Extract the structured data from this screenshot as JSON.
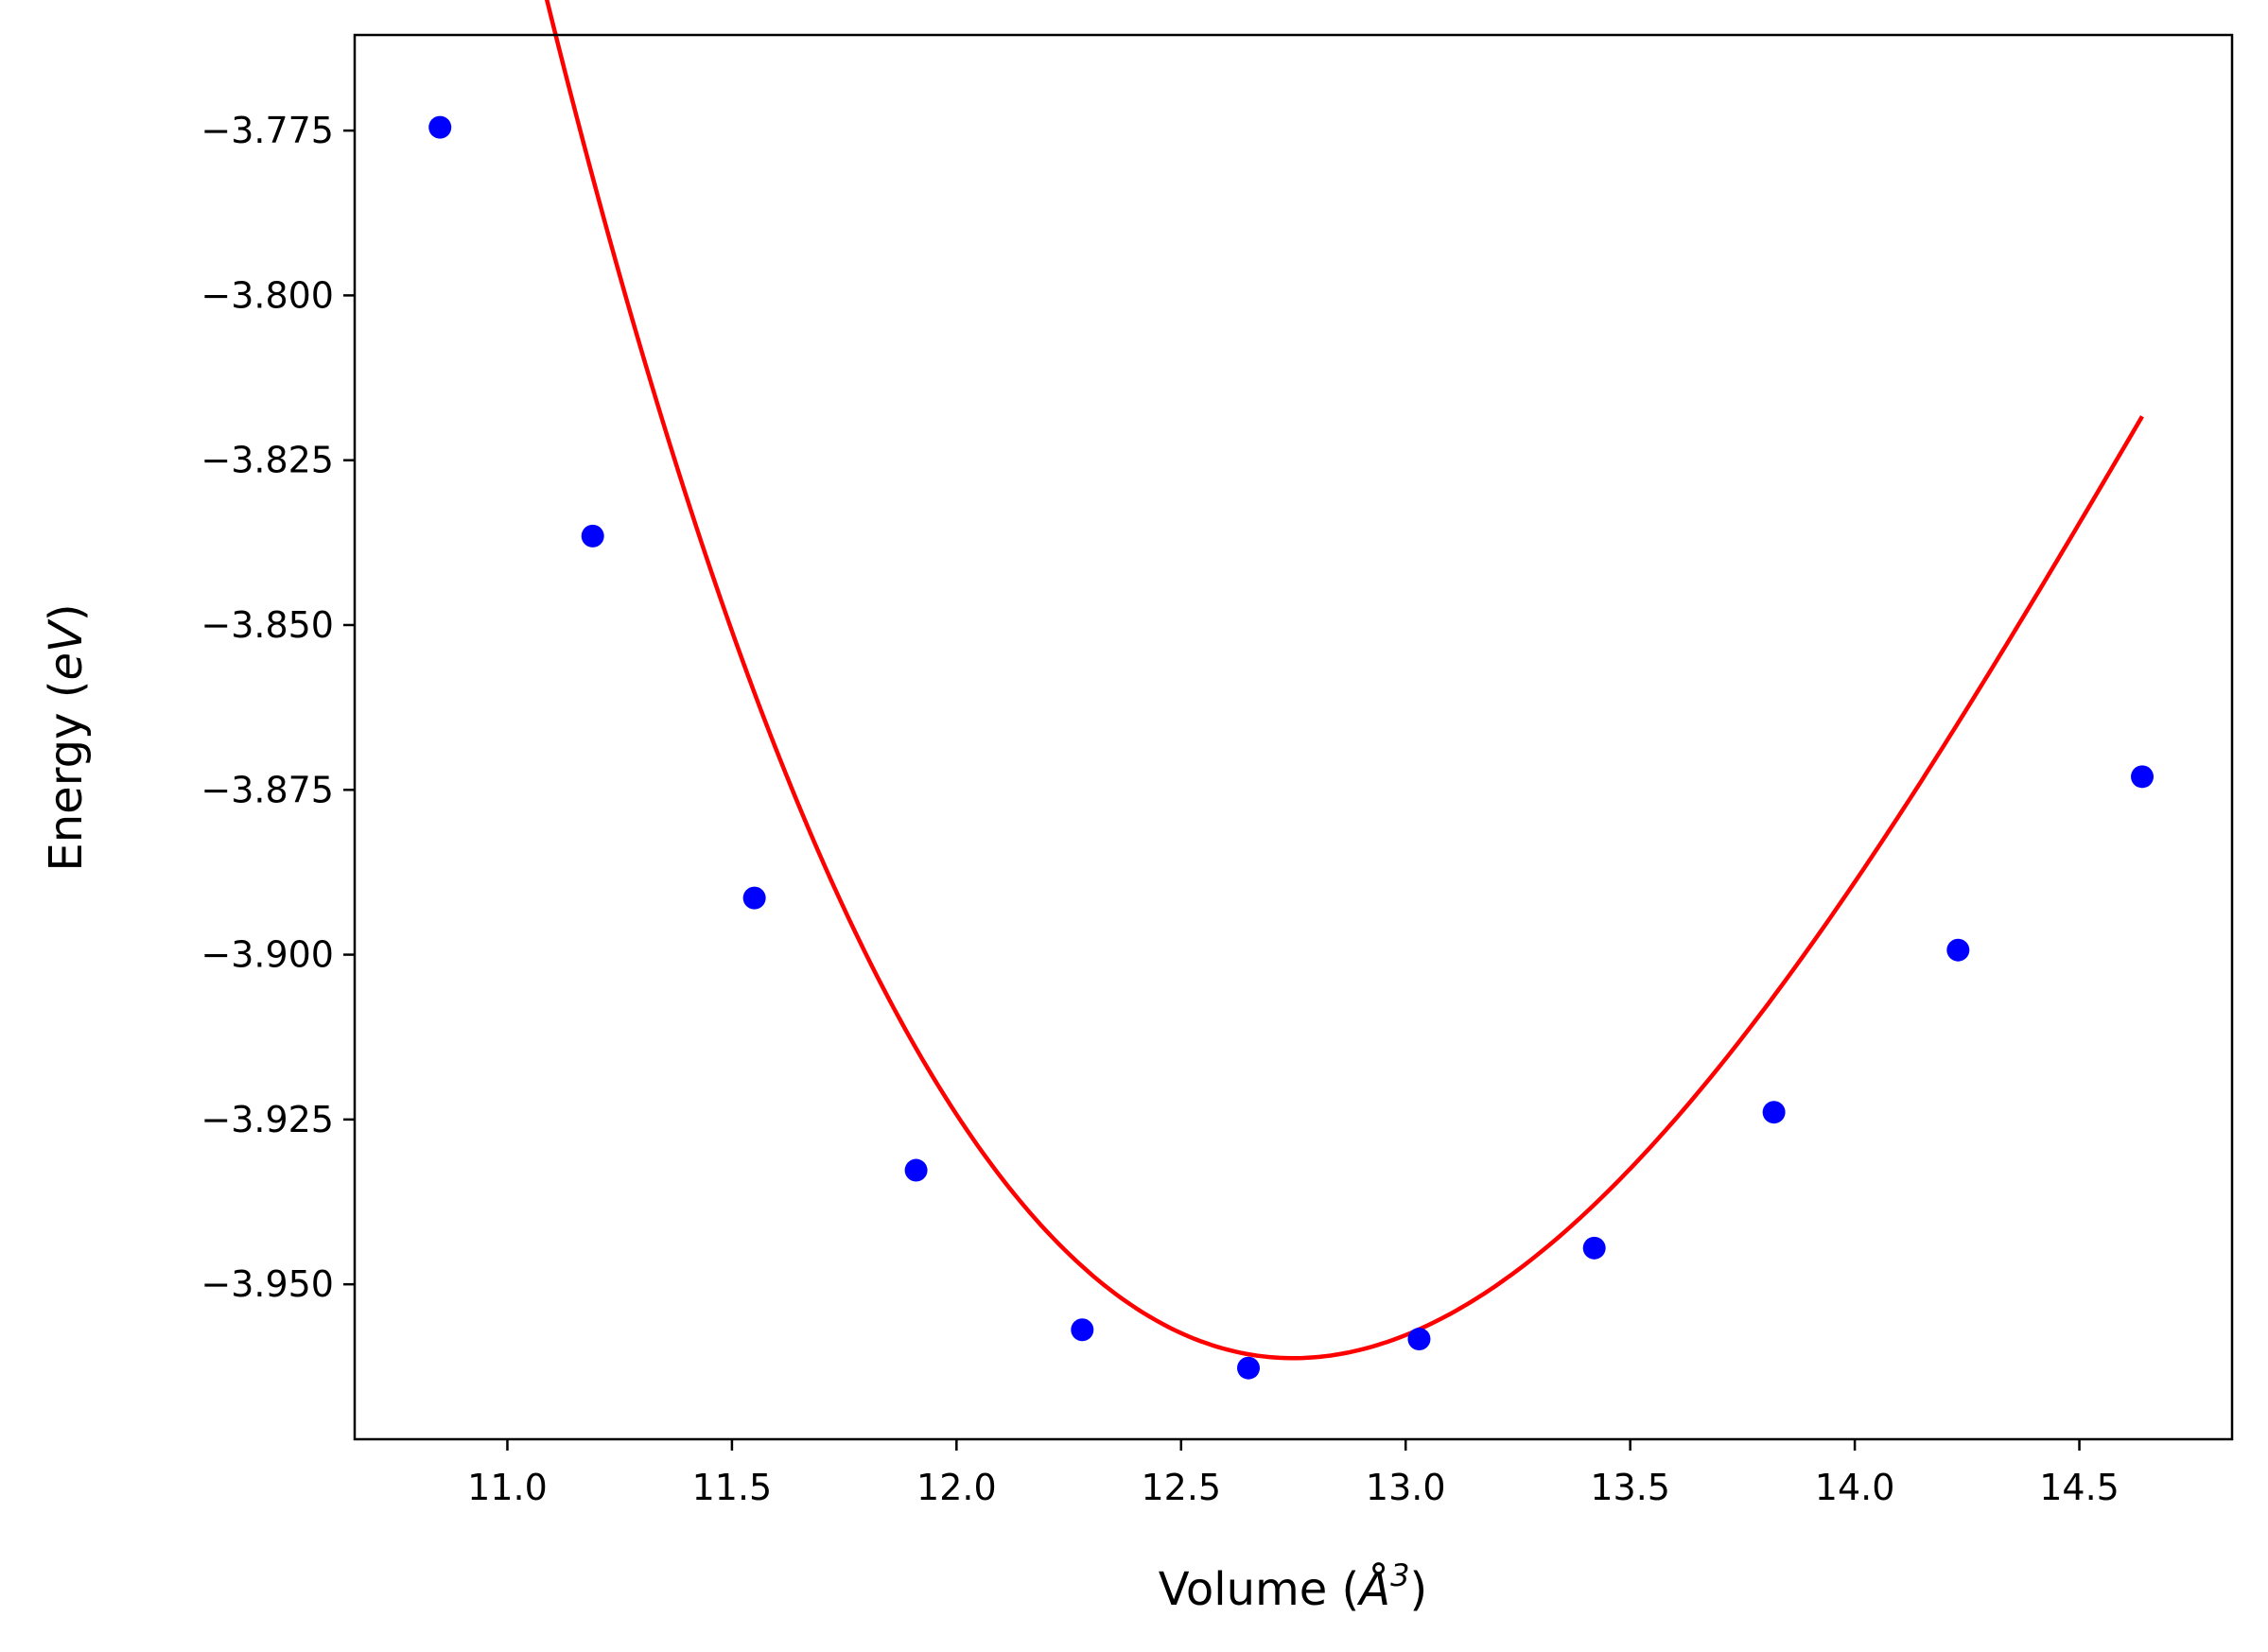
{
  "chart_data": {
    "type": "scatter",
    "title": "",
    "xlabel": {
      "prefix": "Volume (",
      "symbol": "Å",
      "sup": "3",
      "suffix": ")"
    },
    "ylabel": {
      "prefix": "Energy (",
      "italic": "eV",
      "suffix": ")"
    },
    "xlim": [
      10.66,
      14.84
    ],
    "ylim": [
      -3.9735,
      -3.7605
    ],
    "grid": false,
    "legend": "none",
    "x_ticks": [
      11.0,
      11.5,
      12.0,
      12.5,
      13.0,
      13.5,
      14.0,
      14.5
    ],
    "x_tick_labels": [
      "11.0",
      "11.5",
      "12.0",
      "12.5",
      "13.0",
      "13.5",
      "14.0",
      "14.5"
    ],
    "y_ticks": [
      -3.775,
      -3.8,
      -3.825,
      -3.85,
      -3.875,
      -3.9,
      -3.925,
      -3.95
    ],
    "y_tick_labels": [
      "−3.775",
      "−3.800",
      "−3.825",
      "−3.850",
      "−3.875",
      "−3.900",
      "−3.925",
      "−3.950"
    ],
    "series": [
      {
        "kind": "points",
        "color": "#0000ff",
        "x": [
          10.85,
          11.19,
          11.55,
          11.91,
          12.28,
          12.65,
          13.03,
          13.42,
          13.82,
          14.23,
          14.64
        ],
        "y": [
          -3.7745,
          -3.8365,
          -3.8914,
          -3.9327,
          -3.9569,
          -3.9627,
          -3.9583,
          -3.9445,
          -3.9239,
          -3.8993,
          -3.873
        ]
      },
      {
        "kind": "line",
        "color": "#ff0000",
        "fit": {
          "type": "cubic",
          "v0": 12.75,
          "e0": -3.9612,
          "a": 0.0584,
          "b": -0.00974
        },
        "x_range": [
          10.85,
          14.64
        ]
      }
    ]
  }
}
